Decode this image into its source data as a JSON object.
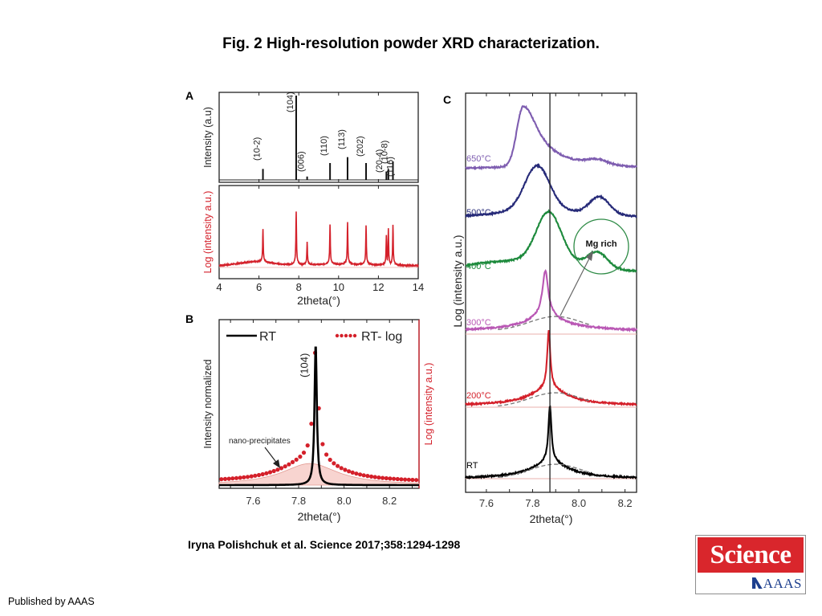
{
  "page": {
    "title": "Fig. 2 High-resolution powder XRD characterization.",
    "citation": "Iryna Polishchuk et al. Science 2017;358:1294-1298",
    "publisher": "Published by AAAS",
    "logo": {
      "top_text": "Science",
      "bottom_text": "AAAS",
      "colors": {
        "red": "#d9262c",
        "blue": "#1d3f8e"
      }
    }
  },
  "chart_data": [
    {
      "panel": "A",
      "type": "line",
      "subplots": [
        {
          "name": "linear",
          "ylabel": "Intensity (a.u)",
          "color": "#111111",
          "peaks": [
            {
              "x": 6.2,
              "rel": 0.13,
              "label": "(10-2)"
            },
            {
              "x": 7.87,
              "rel": 1.0,
              "label": "(104)"
            },
            {
              "x": 8.42,
              "rel": 0.04,
              "label": "(006)"
            },
            {
              "x": 9.57,
              "rel": 0.2,
              "label": "(110)"
            },
            {
              "x": 10.45,
              "rel": 0.27,
              "label": "(113)"
            },
            {
              "x": 11.38,
              "rel": 0.2,
              "label": "(202)"
            },
            {
              "x": 12.4,
              "rel": 0.1,
              "label": "(20-4)"
            },
            {
              "x": 12.5,
              "rel": 0.13,
              "label": "(10-8)"
            },
            {
              "x": 12.73,
              "rel": 0.22,
              "label": "(116)"
            }
          ]
        },
        {
          "name": "log",
          "ylabel": "Log (intensity a.u.)",
          "color": "#d4202a",
          "peaks": [
            {
              "x": 6.2,
              "rel": 0.62
            },
            {
              "x": 7.87,
              "rel": 0.98
            },
            {
              "x": 8.42,
              "rel": 0.45
            },
            {
              "x": 9.57,
              "rel": 0.75
            },
            {
              "x": 10.45,
              "rel": 0.78
            },
            {
              "x": 11.38,
              "rel": 0.74
            },
            {
              "x": 12.4,
              "rel": 0.58
            },
            {
              "x": 12.5,
              "rel": 0.69
            },
            {
              "x": 12.73,
              "rel": 0.75
            }
          ]
        }
      ],
      "xlabel": "2theta(°)",
      "xlim": [
        4,
        14
      ],
      "xticks": [
        "4",
        "6",
        "8",
        "10",
        "12",
        "14"
      ]
    },
    {
      "panel": "B",
      "type": "line",
      "ylabel_left": "Intensity normalized",
      "ylabel_right": "Log (intensity a.u.)",
      "xlabel": "2theta(°)",
      "xlim": [
        7.45,
        8.33
      ],
      "xticks": [
        "7.6",
        "7.8",
        "8.0",
        "8.2"
      ],
      "peak_label": "(104)",
      "peak_x": 7.875,
      "annotation": "nano-precipitates",
      "legend": {
        "placement": "top",
        "entries": [
          {
            "name": "RT",
            "style": "solid",
            "color": "#000000"
          },
          {
            "name": "RT- log",
            "style": "dotted",
            "color": "#d4202a"
          }
        ]
      },
      "series": [
        {
          "name": "RT",
          "peak_height": 1.0,
          "fwhm": 0.012
        },
        {
          "name": "RT- log",
          "peak_height": 0.92,
          "broad_component_height": 0.15,
          "broad_component_center": 7.85,
          "broad_component_fwhm": 0.3
        }
      ],
      "fill_color": "#f6c5c0"
    },
    {
      "panel": "C",
      "type": "line",
      "ylabel": "Log (intensity a.u.)",
      "xlabel": "2theta(°)",
      "xlim": [
        7.51,
        8.25
      ],
      "xticks": [
        "7.6",
        "7.8",
        "8.0",
        "8.2"
      ],
      "reference_line_x": 7.875,
      "annotation": "Mg rich",
      "series": [
        {
          "name": "650°C",
          "color": "#7e5db0",
          "main_peak_x": 7.76,
          "main_peak_rel": 1.0,
          "secondary_peak_x": 8.08,
          "secondary_peak_rel": 0.05
        },
        {
          "name": "500°C",
          "color": "#262a78",
          "main_peak_x": 7.82,
          "main_peak_rel": 1.0,
          "secondary_peak_x": 8.09,
          "secondary_peak_rel": 0.45
        },
        {
          "name": "400°C",
          "color": "#1d8a3c",
          "main_peak_x": 7.87,
          "main_peak_rel": 1.0,
          "secondary_peak_x": 8.08,
          "secondary_peak_rel": 0.35
        },
        {
          "name": "300°C",
          "color": "#b957b4",
          "main_peak_x": 7.855,
          "main_peak_rel": 1.0,
          "secondary_peak_x": null,
          "secondary_peak_rel": null
        },
        {
          "name": "200°C",
          "color": "#d4202a",
          "main_peak_x": 7.87,
          "main_peak_rel": 1.0,
          "secondary_peak_x": null,
          "secondary_peak_rel": null
        },
        {
          "name": "RT",
          "color": "#000000",
          "main_peak_x": 7.875,
          "main_peak_rel": 1.0,
          "secondary_peak_x": null,
          "secondary_peak_rel": null
        }
      ]
    }
  ]
}
